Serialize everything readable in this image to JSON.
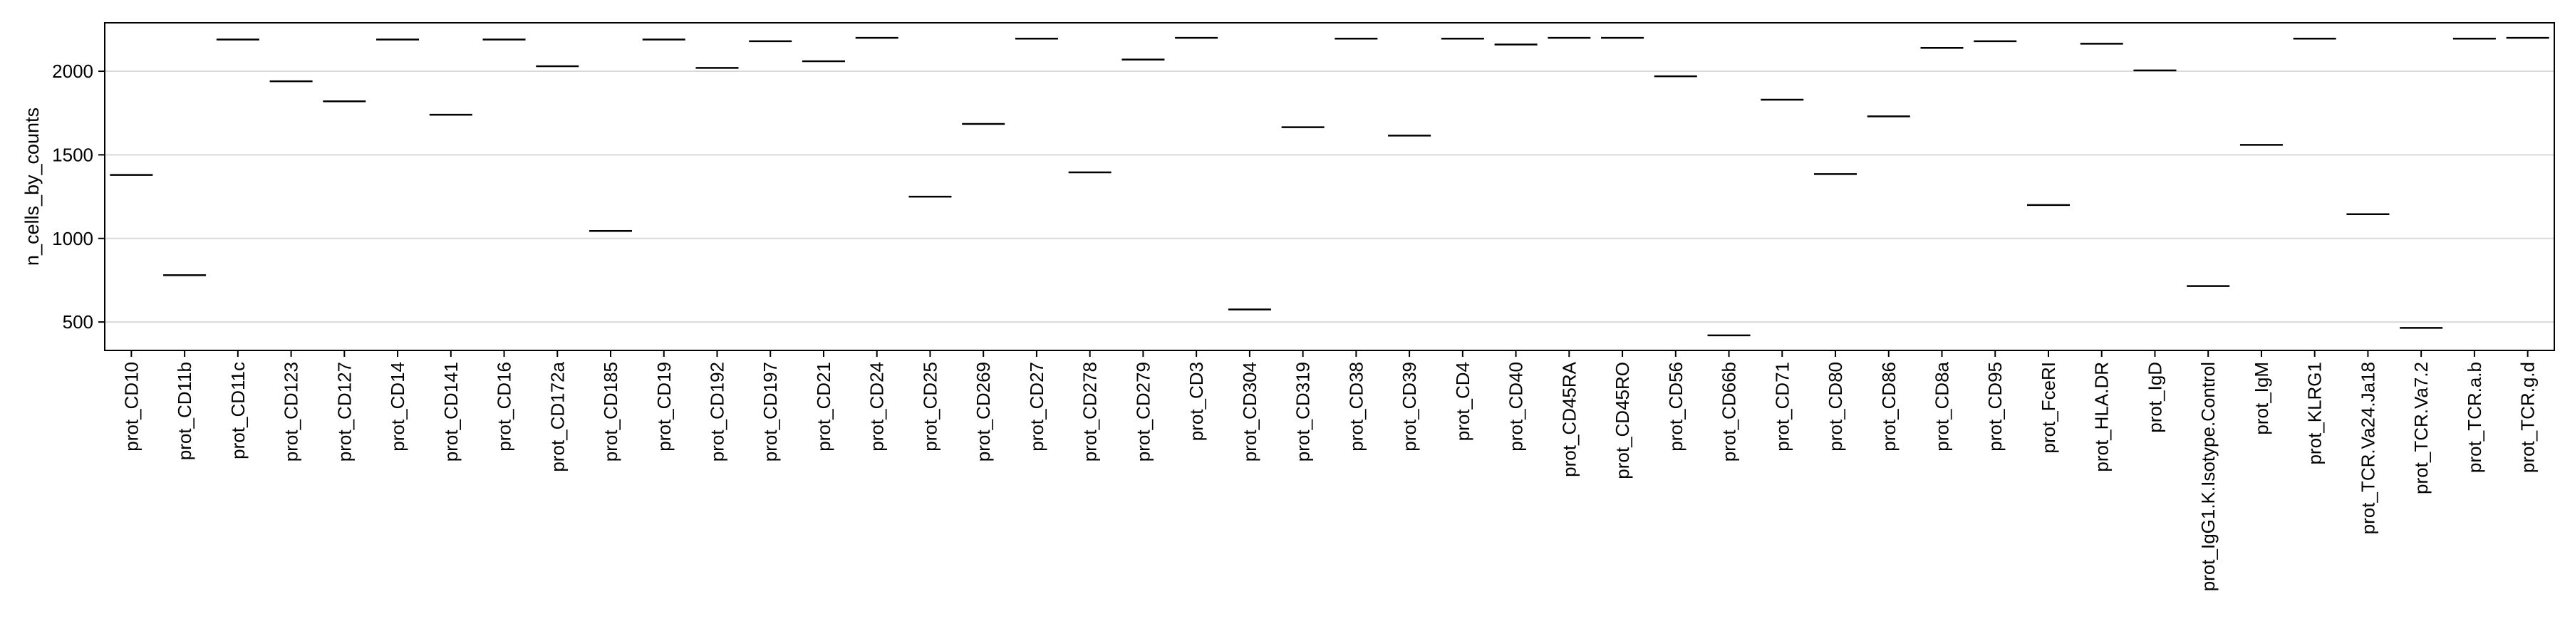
{
  "chart_data": {
    "type": "box",
    "title": "",
    "xlabel": "",
    "ylabel": "n_cells_by_counts",
    "ylim": [
      330,
      2290
    ],
    "yticks": [
      500,
      1000,
      1500,
      2000
    ],
    "grid": "horizontal",
    "categories": [
      "prot_CD10",
      "prot_CD11b",
      "prot_CD11c",
      "prot_CD123",
      "prot_CD127",
      "prot_CD14",
      "prot_CD141",
      "prot_CD16",
      "prot_CD172a",
      "prot_CD185",
      "prot_CD19",
      "prot_CD192",
      "prot_CD197",
      "prot_CD21",
      "prot_CD24",
      "prot_CD25",
      "prot_CD269",
      "prot_CD27",
      "prot_CD278",
      "prot_CD279",
      "prot_CD3",
      "prot_CD304",
      "prot_CD319",
      "prot_CD38",
      "prot_CD39",
      "prot_CD4",
      "prot_CD40",
      "prot_CD45RA",
      "prot_CD45RO",
      "prot_CD56",
      "prot_CD66b",
      "prot_CD71",
      "prot_CD80",
      "prot_CD86",
      "prot_CD8a",
      "prot_CD95",
      "prot_FceRI",
      "prot_HLA.DR",
      "prot_IgD",
      "prot_IgG1.K.Isotype.Control",
      "prot_IgM",
      "prot_KLRG1",
      "prot_TCR.Va24.Ja18",
      "prot_TCR.Va7.2",
      "prot_TCR.a.b",
      "prot_TCR.g.d"
    ],
    "values": [
      1380,
      780,
      2190,
      1940,
      1820,
      2190,
      1740,
      2190,
      2030,
      1045,
      2190,
      2020,
      2180,
      2060,
      2200,
      1250,
      1685,
      2195,
      1395,
      2070,
      2200,
      575,
      1665,
      2195,
      1615,
      2195,
      2160,
      2200,
      2200,
      1970,
      420,
      1830,
      1385,
      1730,
      2140,
      2180,
      1200,
      2165,
      2005,
      715,
      1560,
      2195,
      1145,
      465,
      2195,
      2200
    ],
    "colors": {
      "line": "#000000",
      "grid": "#d9d9d9",
      "axis": "#000000"
    }
  }
}
